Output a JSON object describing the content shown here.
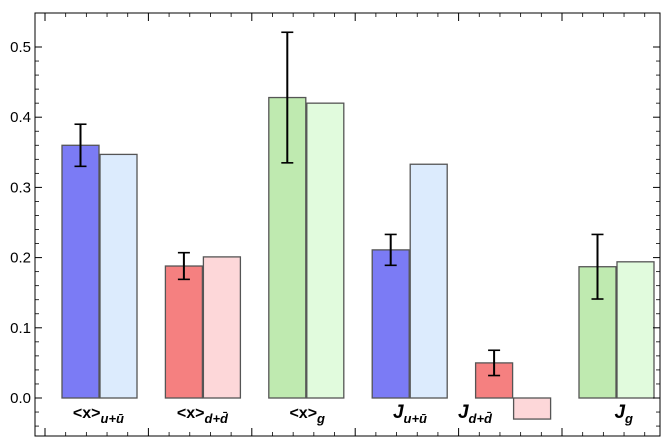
{
  "chart_data": {
    "type": "bar",
    "ylim": [
      -0.05,
      0.55
    ],
    "yticks": [
      "0.0",
      "0.1",
      "0.2",
      "0.3",
      "0.4",
      "0.5"
    ],
    "ytick_values": [
      0.0,
      0.1,
      0.2,
      0.3,
      0.4,
      0.5
    ],
    "grid": false,
    "categories": [
      {
        "main": "<x>",
        "sub": "u+ū",
        "italic": false
      },
      {
        "main": "<x>",
        "sub": "d+d̄",
        "italic": false
      },
      {
        "main": "<x>",
        "sub": "g",
        "italic": false
      },
      {
        "main": "J",
        "sub": "u+ū",
        "italic": true
      },
      {
        "main": "J",
        "sub": "d+d̄",
        "italic": true
      },
      {
        "main": "J",
        "sub": "g",
        "italic": true
      }
    ],
    "bars": [
      {
        "value": 0.36,
        "err": 0.03,
        "fill": "#7b7bf5"
      },
      {
        "value": 0.347,
        "err": null,
        "fill": "#dcebfd"
      },
      {
        "value": 0.188,
        "err": 0.019,
        "fill": "#f58080"
      },
      {
        "value": 0.201,
        "err": null,
        "fill": "#fdd7d9"
      },
      {
        "value": 0.428,
        "err": 0.093,
        "fill": "#bfeab0"
      },
      {
        "value": 0.42,
        "err": null,
        "fill": "#e1fbdd"
      },
      {
        "value": 0.211,
        "err": 0.022,
        "fill": "#7b7bf5"
      },
      {
        "value": 0.333,
        "err": null,
        "fill": "#dcebfd"
      },
      {
        "value": 0.05,
        "err": 0.018,
        "fill": "#f58080"
      },
      {
        "value": -0.03,
        "err": null,
        "fill": "#fdd7d9"
      },
      {
        "value": 0.187,
        "err": 0.046,
        "fill": "#bfeab0"
      },
      {
        "value": 0.194,
        "err": null,
        "fill": "#e1fbdd"
      }
    ],
    "colors": {
      "frame": "#000000",
      "bar_edge": "#555555"
    }
  }
}
